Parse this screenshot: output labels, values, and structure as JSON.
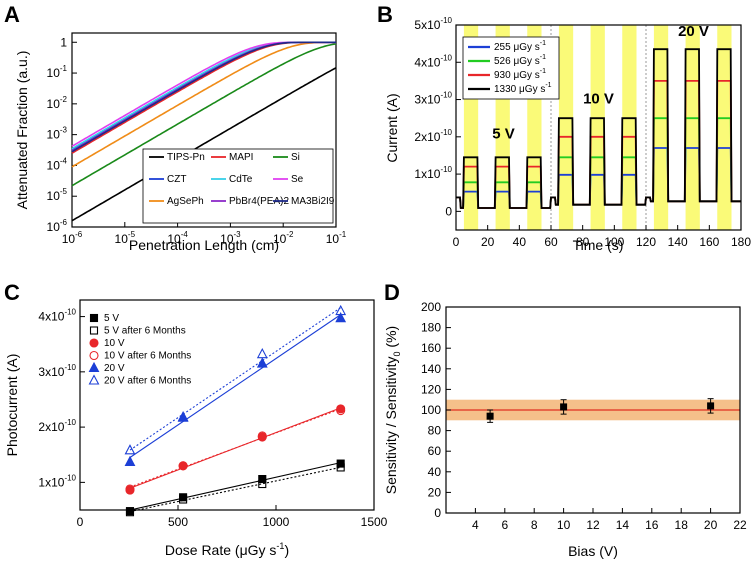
{
  "panel_labels": [
    "A",
    "B",
    "C",
    "D"
  ],
  "chart_data": [
    {
      "panel": "A",
      "type": "line",
      "xlabel": "Penetration Length (cm)",
      "ylabel": "Attenuated Fraction (a.u.)",
      "xscale": "log",
      "yscale": "log",
      "xlim": [
        1e-06,
        0.1
      ],
      "ylim": [
        1e-06,
        2
      ],
      "xtick_labels": [
        "10^-6",
        "10^-5",
        "10^-4",
        "10^-3",
        "10^-2",
        "10^-1"
      ],
      "ytick_labels": [
        "10^-6",
        "10^-5",
        "10^-4",
        "10^-3",
        "10^-2",
        "10^-1",
        "1"
      ],
      "legend_position": "bottom-right",
      "series": [
        {
          "name": "TIPS-Pn",
          "color": "#000000",
          "y_at_1e-6": 1.6e-06
        },
        {
          "name": "MAPI",
          "color": "#e8262a",
          "y_at_1e-6": 0.00025
        },
        {
          "name": "Si",
          "color": "#1a8a1a",
          "y_at_1e-6": 2.2e-05
        },
        {
          "name": "CZT",
          "color": "#1c3fd6",
          "y_at_1e-6": 0.00032
        },
        {
          "name": "CdTe",
          "color": "#35d0e8",
          "y_at_1e-6": 0.00035
        },
        {
          "name": "Se",
          "color": "#e040f0",
          "y_at_1e-6": 0.00042
        },
        {
          "name": "AgSePh",
          "color": "#f08c18",
          "y_at_1e-6": 9e-05
        },
        {
          "name": "PbBr4(PEA)2",
          "color": "#8d2ac9",
          "y_at_1e-6": 0.0003
        },
        {
          "name": "MA3Bi2I9",
          "color": "#1e2a8a",
          "y_at_1e-6": 0.00028
        }
      ]
    },
    {
      "panel": "B",
      "type": "line",
      "xlabel": "Time (s)",
      "ylabel": "Current (A)",
      "xlim": [
        0,
        180
      ],
      "ylim": [
        -5e-11,
        5e-10
      ],
      "xtick_labels": [
        "0",
        "20",
        "40",
        "60",
        "80",
        "100",
        "120",
        "140",
        "160",
        "180"
      ],
      "ytick_labels": [
        "0",
        "1x10^-10",
        "2x10^-10",
        "3x10^-10",
        "4x10^-10",
        "5x10^-10"
      ],
      "legend_position": "top-left",
      "legend_unit_prefix": "μGy s",
      "legend_unit_exp": "-1",
      "bias_annotations": [
        "5 V",
        "10 V",
        "20 V"
      ],
      "bias_segments": [
        [
          0,
          60
        ],
        [
          60,
          120
        ],
        [
          120,
          180
        ]
      ],
      "on_windows": [
        [
          5,
          14
        ],
        [
          25,
          34
        ],
        [
          45,
          54
        ],
        [
          65,
          74
        ],
        [
          85,
          94
        ],
        [
          105,
          114
        ],
        [
          125,
          134
        ],
        [
          145,
          154
        ],
        [
          165,
          174
        ]
      ],
      "series": [
        {
          "name": "255",
          "color": "#1c3fd6",
          "levels": [
            5.3e-11,
            9.8e-11,
            1.7e-10
          ]
        },
        {
          "name": "526",
          "color": "#22cc22",
          "levels": [
            7.8e-11,
            1.45e-10,
            2.5e-10
          ]
        },
        {
          "name": "930",
          "color": "#e8262a",
          "levels": [
            1.2e-10,
            2e-10,
            3.5e-10
          ]
        },
        {
          "name": "1330",
          "color": "#000000",
          "levels": [
            1.45e-10,
            2.5e-10,
            4.35e-10
          ]
        }
      ]
    },
    {
      "panel": "C",
      "type": "scatter",
      "xlabel": "Dose Rate (μGy s^-1)",
      "ylabel": "Photocurrent (A)",
      "xlim": [
        0,
        1500
      ],
      "ylim": [
        5e-11,
        4.3e-10
      ],
      "xtick_labels": [
        "0",
        "500",
        "1000",
        "1500"
      ],
      "ytick_labels": [
        "1x10^-10",
        "2x10^-10",
        "3x10^-10",
        "4x10^-10"
      ],
      "legend_position": "top-left",
      "x": [
        255,
        526,
        930,
        1330
      ],
      "series": [
        {
          "name": "5 V",
          "color": "#000000",
          "marker": "square-filled",
          "values": [
            4.8e-11,
            7.3e-11,
            1.06e-10,
            1.34e-10
          ]
        },
        {
          "name": "5 V after 6 Months",
          "color": "#000000",
          "marker": "square-open",
          "dashed": true,
          "values": [
            4.6e-11,
            6.9e-11,
            9.7e-11,
            1.27e-10
          ]
        },
        {
          "name": "10 V",
          "color": "#e8262a",
          "marker": "circle-filled",
          "values": [
            8.6e-11,
            1.3e-10,
            1.82e-10,
            2.33e-10
          ]
        },
        {
          "name": "10 V after 6 Months",
          "color": "#e8262a",
          "marker": "circle-open",
          "dashed": true,
          "values": [
            8.8e-11,
            1.3e-10,
            1.84e-10,
            2.3e-10
          ]
        },
        {
          "name": "20 V",
          "color": "#1c3fd6",
          "marker": "triangle-filled",
          "values": [
            1.37e-10,
            2.17e-10,
            3.15e-10,
            3.97e-10
          ]
        },
        {
          "name": "20 V after 6 Months",
          "color": "#1c3fd6",
          "marker": "triangle-open",
          "dashed": true,
          "values": [
            1.58e-10,
            2.18e-10,
            3.32e-10,
            4.1e-10
          ]
        }
      ]
    },
    {
      "panel": "D",
      "type": "scatter",
      "xlabel": "Bias (V)",
      "ylabel": "Sensitivity / Sensitivity0 (%)",
      "xlim": [
        2,
        22
      ],
      "ylim": [
        0,
        200
      ],
      "xtick_labels": [
        "4",
        "6",
        "8",
        "10",
        "12",
        "14",
        "16",
        "18",
        "20",
        "22"
      ],
      "ytick_labels": [
        "0",
        "20",
        "40",
        "60",
        "80",
        "100",
        "120",
        "140",
        "160",
        "180",
        "200"
      ],
      "reference_line": 100,
      "band": [
        90,
        110
      ],
      "band_color": "#f5c08a",
      "line_color": "#e03020",
      "x": [
        5,
        10,
        20
      ],
      "values": [
        94,
        103,
        104
      ],
      "errors": [
        6,
        7,
        7
      ]
    }
  ]
}
